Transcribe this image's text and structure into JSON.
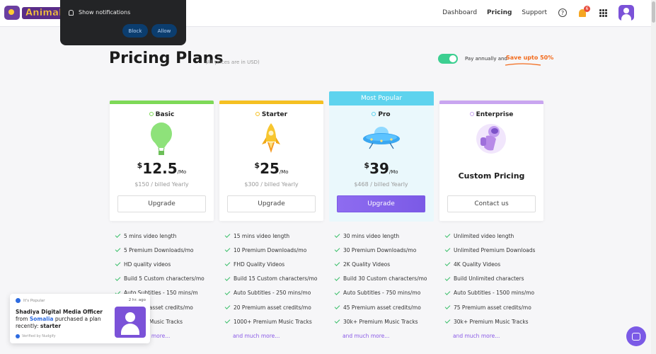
{
  "header": {
    "logo_text": "Animaker",
    "nav": [
      "Dashboard",
      "Pricing",
      "Support"
    ],
    "active_nav": "Pricing",
    "notification_count": "6"
  },
  "notification_prompt": {
    "label": "Show notifications",
    "block_label": "Block",
    "allow_label": "Allow"
  },
  "page": {
    "title": "Pricing Plans",
    "subtitle": "(All prices are in USD)",
    "annual_label": "Pay annually and",
    "save_label": "Save upto 50%",
    "toggle_on": true
  },
  "plans": [
    {
      "name": "Basic",
      "color": "#7ed957",
      "currency": "$",
      "price": "12.5",
      "period": "/Mo",
      "billed": "$150 / billed Yearly",
      "cta": "Upgrade",
      "features": [
        "5 mins video length",
        "5 Premium Downloads/mo",
        "HD quality videos",
        "Build 5 Custom characters/mo",
        "Auto Subtitles - 150 mins/m",
        "Premium asset credits/mo",
        "Premium Music Tracks"
      ],
      "more": "and much more..."
    },
    {
      "name": "Starter",
      "color": "#f5c022",
      "currency": "$",
      "price": "25",
      "period": "/Mo",
      "billed": "$300 / billed Yearly",
      "cta": "Upgrade",
      "features": [
        "15 mins video length",
        "10 Premium Downloads/mo",
        "FHD Quality Videos",
        "Build 15 Custom characters/mo",
        "Auto Subtitles - 250 mins/mo",
        "20 Premium asset credits/mo",
        "1000+ Premium Music Tracks"
      ],
      "more": "and much more..."
    },
    {
      "name": "Pro",
      "color": "#5ed3ee",
      "badge": "Most Popular",
      "currency": "$",
      "price": "39",
      "period": "/Mo",
      "billed": "$468 / billed Yearly",
      "cta": "Upgrade",
      "features": [
        "30 mins video length",
        "30 Premium Downloads/mo",
        "2K Quality Videos",
        "Build 30 Custom characters/mo",
        "Auto Subtitles - 750 mins/mo",
        "45 Premium asset credits/mo",
        "30k+ Premium Music Tracks"
      ],
      "more": "and much more..."
    },
    {
      "name": "Enterprise",
      "color": "#c9a5f0",
      "custom": "Custom Pricing",
      "cta": "Contact us",
      "features": [
        "Unlimited video length",
        "Unlimited Premium Downloads",
        "4K Quality Videos",
        "Build Unlimited characters",
        "Auto Subtitles - 1500 mins/mo",
        "75 Premium asset credits/mo",
        "30k+ Premium Music Tracks"
      ],
      "more": "and much more..."
    }
  ],
  "social_proof": {
    "tag": "It's Popular",
    "time": "2 hr. ago",
    "name": "Shadiya Digital Media Officer",
    "from": "from",
    "place": "Somalia",
    "action": "purchased a plan recently:",
    "plan": "starter",
    "verified": "Verified by Nudgify"
  }
}
